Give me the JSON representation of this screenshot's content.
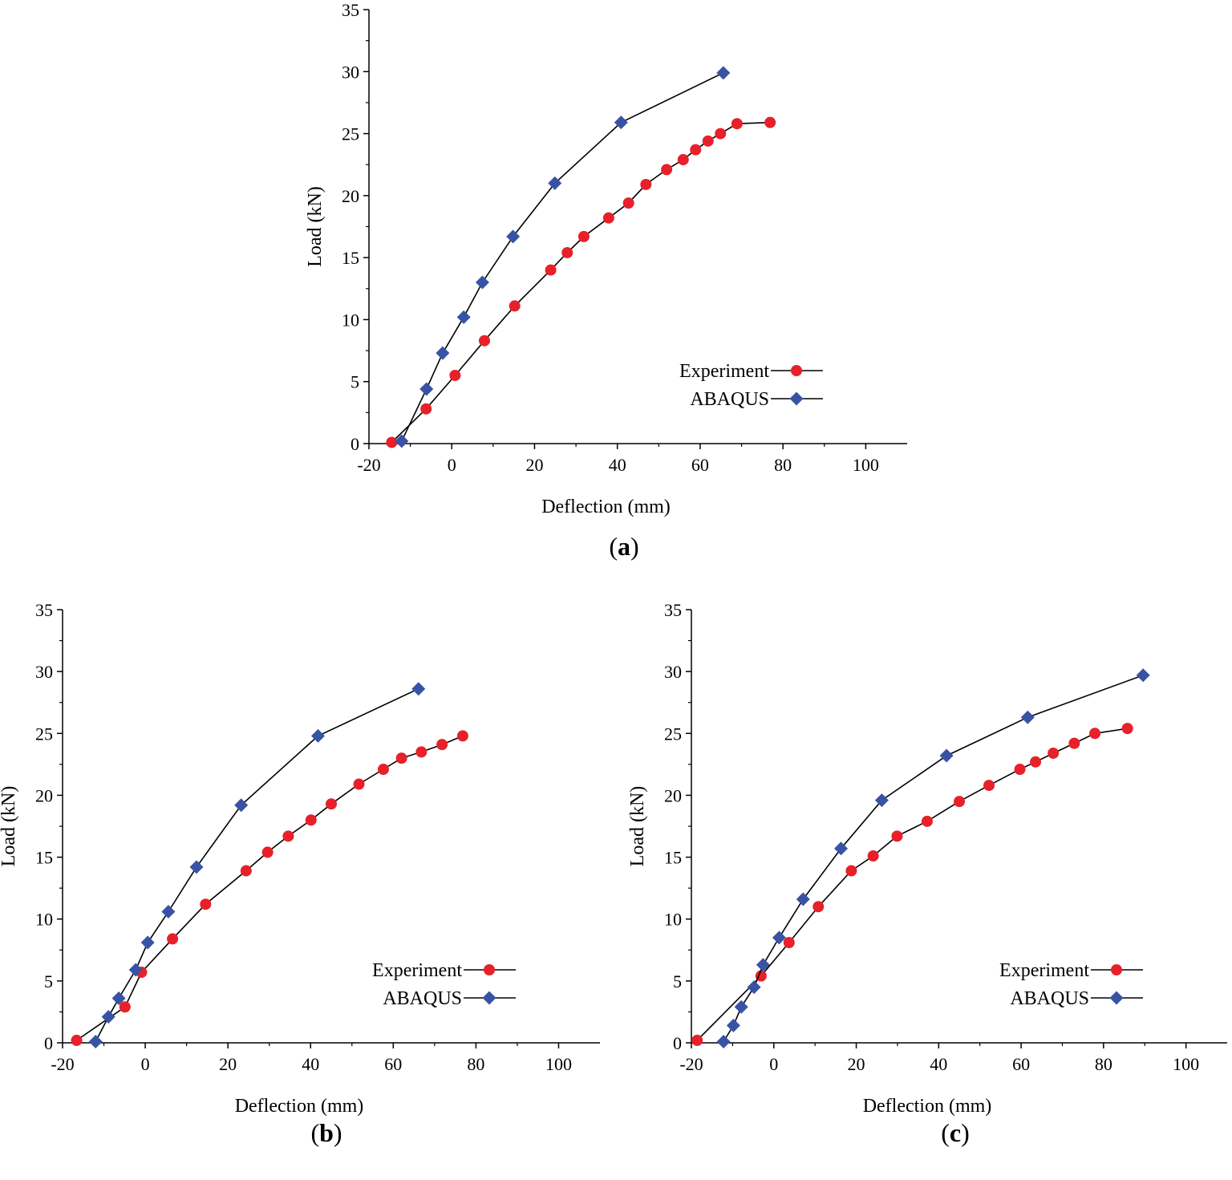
{
  "colors": {
    "experiment": "#e8202a",
    "abaqus": "#3953a4",
    "axis": "#000000",
    "line": "#000000"
  },
  "chart_data": [
    {
      "id": "a",
      "type": "line",
      "caption_letter": "a",
      "xlabel": "Deflection (mm)",
      "ylabel": "Load (kN)",
      "xlim": [
        -20,
        110
      ],
      "ylim": [
        0,
        35
      ],
      "xticks": [
        -20,
        0,
        20,
        40,
        60,
        80,
        100
      ],
      "yticks": [
        0,
        5,
        10,
        15,
        20,
        25,
        30,
        35
      ],
      "legend_position": "lower-right",
      "series": [
        {
          "name": "Experiment",
          "marker": "circle",
          "x": [
            -14.5,
            -6.2,
            0.8,
            7.9,
            15.2,
            23.9,
            27.9,
            31.9,
            37.9,
            42.7,
            46.9,
            51.9,
            55.9,
            58.9,
            61.9,
            64.9,
            68.9,
            76.9
          ],
          "y": [
            0.1,
            2.8,
            5.5,
            8.3,
            11.1,
            14.0,
            15.4,
            16.7,
            18.2,
            19.4,
            20.9,
            22.1,
            22.9,
            23.7,
            24.4,
            25.0,
            25.8,
            25.9
          ]
        },
        {
          "name": "ABAQUS",
          "marker": "diamond",
          "x": [
            -12.1,
            -6.1,
            -2.2,
            2.9,
            7.4,
            14.8,
            24.9,
            40.9,
            65.6
          ],
          "y": [
            0.2,
            4.4,
            7.3,
            10.2,
            13.0,
            16.7,
            21.0,
            25.9,
            29.9
          ]
        }
      ]
    },
    {
      "id": "b",
      "type": "line",
      "caption_letter": "b",
      "xlabel": "Deflection (mm)",
      "ylabel": "Load (kN)",
      "xlim": [
        -20,
        110
      ],
      "ylim": [
        0,
        35
      ],
      "xticks": [
        -20,
        0,
        20,
        40,
        60,
        80,
        100
      ],
      "yticks": [
        0,
        5,
        10,
        15,
        20,
        25,
        30,
        35
      ],
      "legend_position": "lower-right",
      "series": [
        {
          "name": "Experiment",
          "marker": "circle",
          "x": [
            -16.6,
            -4.9,
            -0.9,
            6.6,
            14.6,
            24.4,
            29.6,
            34.6,
            40.1,
            45.0,
            51.7,
            57.6,
            62.0,
            66.8,
            71.8,
            76.8
          ],
          "y": [
            0.2,
            2.9,
            5.7,
            8.4,
            11.2,
            13.9,
            15.4,
            16.7,
            18.0,
            19.3,
            20.9,
            22.1,
            23.0,
            23.5,
            24.1,
            24.8
          ]
        },
        {
          "name": "ABAQUS",
          "marker": "diamond",
          "x": [
            -12.0,
            -8.9,
            -6.4,
            -2.3,
            0.6,
            5.6,
            12.4,
            23.2,
            41.8,
            66.1
          ],
          "y": [
            0.1,
            2.1,
            3.6,
            5.9,
            8.1,
            10.6,
            14.2,
            19.2,
            24.8,
            28.6
          ]
        }
      ]
    },
    {
      "id": "c",
      "type": "line",
      "caption_letter": "c",
      "xlabel": "Deflection (mm)",
      "ylabel": "Load (kN)",
      "xlim": [
        -20,
        110
      ],
      "ylim": [
        0,
        35
      ],
      "xticks": [
        -20,
        0,
        20,
        40,
        60,
        80,
        100
      ],
      "yticks": [
        0,
        5,
        10,
        15,
        20,
        25,
        30,
        35
      ],
      "legend_position": "lower-right",
      "series": [
        {
          "name": "Experiment",
          "marker": "circle",
          "x": [
            -18.6,
            -3.1,
            3.7,
            10.8,
            18.8,
            24.1,
            29.9,
            37.2,
            45.0,
            52.2,
            59.7,
            63.5,
            67.8,
            72.9,
            77.9,
            85.8
          ],
          "y": [
            0.2,
            5.4,
            8.1,
            11.0,
            13.9,
            15.1,
            16.7,
            17.9,
            19.5,
            20.8,
            22.1,
            22.7,
            23.4,
            24.2,
            25.0,
            25.4
          ]
        },
        {
          "name": "ABAQUS",
          "marker": "diamond",
          "x": [
            -12.2,
            -9.8,
            -7.9,
            -4.8,
            -2.6,
            1.3,
            7.1,
            16.3,
            26.2,
            41.9,
            61.6,
            89.6
          ],
          "y": [
            0.1,
            1.4,
            2.9,
            4.5,
            6.3,
            8.5,
            11.6,
            15.7,
            19.6,
            23.2,
            26.3,
            29.7
          ]
        }
      ]
    }
  ]
}
